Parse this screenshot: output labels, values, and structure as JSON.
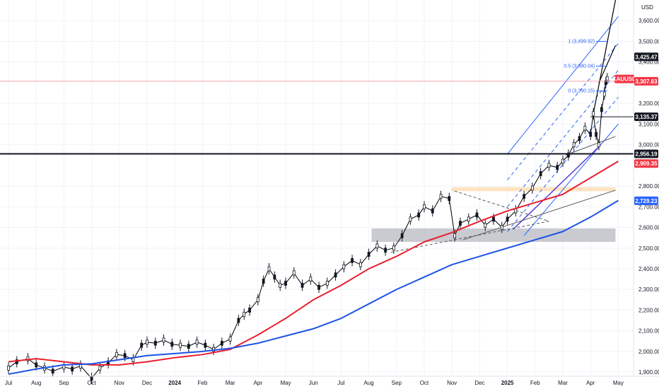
{
  "chart_data": {
    "type": "line",
    "symbol": "XAUUSD",
    "currency": "USD",
    "ylim": [
      1880,
      3700
    ],
    "y_ticks": [
      "1,900.00",
      "2,000.00",
      "2,100.00",
      "2,200.00",
      "2,300.00",
      "2,400.00",
      "2,500.00",
      "2,600.00",
      "2,700.00",
      "2,800.00",
      "3,000.00",
      "3,100.00",
      "3,200.00",
      "3,400.00",
      "3,500.00",
      "3,600.00"
    ],
    "y_tick_values": [
      1900,
      2000,
      2100,
      2200,
      2300,
      2400,
      2500,
      2600,
      2700,
      2800,
      3000,
      3100,
      3200,
      3400,
      3500,
      3600
    ],
    "x_ticks": [
      "Jul",
      "Aug",
      "Sep",
      "Oct",
      "Nov",
      "Dec",
      "2024",
      "Feb",
      "Mar",
      "Apr",
      "May",
      "Jun",
      "Jul",
      "Aug",
      "Sep",
      "Oct",
      "Nov",
      "Dec",
      "2025",
      "Feb",
      "Mar",
      "Apr",
      "May"
    ],
    "x_tick_months": [
      0,
      1,
      2,
      3,
      4,
      5,
      6,
      7,
      8,
      9,
      10,
      11,
      12,
      13,
      14,
      15,
      16,
      17,
      18,
      19,
      20,
      21,
      22
    ],
    "x_start": "2023-07",
    "series": [
      {
        "name": "",
        "role": "price",
        "color": "#000000",
        "x": [
          0,
          0.3,
          0.7,
          1,
          1.3,
          1.6,
          2,
          2.3,
          2.6,
          3,
          3.3,
          3.6,
          3.9,
          4.2,
          4.5,
          4.8,
          5,
          5.3,
          5.6,
          5.9,
          6.2,
          6.5,
          6.8,
          7.1,
          7.4,
          7.7,
          8,
          8.3,
          8.5,
          8.7,
          9,
          9.2,
          9.4,
          9.6,
          9.8,
          10,
          10.3,
          10.6,
          10.9,
          11.2,
          11.5,
          11.8,
          12.1,
          12.4,
          12.7,
          13,
          13.3,
          13.6,
          13.9,
          14.2,
          14.5,
          14.8,
          15,
          15.3,
          15.6,
          15.9,
          16.1,
          16.3,
          16.6,
          16.9,
          17.2,
          17.5,
          17.8,
          18,
          18.3,
          18.6,
          18.9,
          19.2,
          19.5,
          19.8,
          20,
          20.2,
          20.4,
          20.6,
          20.8,
          21,
          21.1,
          21.2,
          21.3,
          21.4,
          21.5,
          21.55,
          21.6
        ],
        "values": [
          1920,
          1950,
          1965,
          1935,
          1920,
          1905,
          1925,
          1915,
          1930,
          1870,
          1920,
          1945,
          1985,
          1980,
          1960,
          2030,
          2045,
          2040,
          2055,
          2035,
          2030,
          2025,
          2045,
          2030,
          2010,
          2040,
          2060,
          2150,
          2180,
          2200,
          2250,
          2340,
          2400,
          2360,
          2320,
          2330,
          2380,
          2320,
          2350,
          2310,
          2330,
          2370,
          2410,
          2440,
          2420,
          2470,
          2510,
          2490,
          2500,
          2560,
          2640,
          2660,
          2700,
          2680,
          2750,
          2740,
          2560,
          2620,
          2640,
          2660,
          2610,
          2640,
          2600,
          2640,
          2680,
          2750,
          2790,
          2860,
          2900,
          2890,
          2920,
          2950,
          3000,
          3030,
          3080,
          3050,
          3150,
          3050,
          3000,
          3170,
          3245,
          3300,
          3320
        ]
      },
      {
        "name": "",
        "role": "moving-average",
        "color": "#e91e2e",
        "x": [
          0,
          1,
          2,
          3,
          4,
          5,
          6,
          7,
          8,
          9,
          10,
          11,
          12,
          13,
          14,
          15,
          16,
          17,
          18,
          19,
          20,
          21,
          22
        ],
        "values": [
          1950,
          1965,
          1950,
          1935,
          1935,
          1950,
          1970,
          1985,
          2010,
          2080,
          2160,
          2250,
          2320,
          2400,
          2460,
          2530,
          2575,
          2630,
          2680,
          2720,
          2760,
          2840,
          2920
        ]
      },
      {
        "name": "",
        "role": "moving-average",
        "color": "#1e53e5",
        "x": [
          0,
          1,
          2,
          3,
          4,
          5,
          6,
          7,
          8,
          9,
          10,
          11,
          12,
          13,
          14,
          15,
          16,
          17,
          18,
          19,
          20,
          21,
          22
        ],
        "values": [
          1890,
          1915,
          1935,
          1940,
          1960,
          1980,
          1990,
          2000,
          2015,
          2040,
          2075,
          2110,
          2160,
          2230,
          2300,
          2360,
          2420,
          2460,
          2500,
          2540,
          2580,
          2650,
          2730
        ]
      }
    ],
    "price_tags": [
      {
        "label": "3,425.47",
        "value": 3425,
        "bg": "#131722",
        "color": "#ffffff"
      },
      {
        "label": "XAUUSD",
        "value": 3318,
        "bg": "#f23645",
        "color": "#ffffff"
      },
      {
        "label": "3,307.63",
        "value": 3307,
        "bg": "#f23645",
        "color": "#ffffff"
      },
      {
        "label": "3,135.37",
        "value": 3135,
        "bg": "#131722",
        "color": "#ffffff"
      },
      {
        "label": "2,956.19",
        "value": 2956,
        "bg": "#131722",
        "color": "#ffffff"
      },
      {
        "label": "2,909.35",
        "value": 2909,
        "bg": "#f23645",
        "color": "#ffffff"
      },
      {
        "label": "2,729.23",
        "value": 2729,
        "bg": "#2962ff",
        "color": "#ffffff"
      }
    ],
    "fib_labels": [
      {
        "label": "1 (3,499.92)",
        "value": 3500
      },
      {
        "label": "0.5 (3,380.04)",
        "value": 3380
      },
      {
        "label": "0 (3,260.15)",
        "value": 3260
      }
    ],
    "horizontal_levels": [
      {
        "value": 2956,
        "color": "#131722"
      },
      {
        "value": 3307,
        "color": "#f7a5ac"
      },
      {
        "value": 3135,
        "color": "#131722"
      }
    ],
    "zones": [
      {
        "y_range": [
          2530,
          2595
        ],
        "x_range": [
          13.1,
          21.9
        ],
        "color": "#b2b5be"
      },
      {
        "y_range": [
          2775,
          2795
        ],
        "x_range": [
          16.0,
          21.9
        ],
        "color": "#ffd8a8"
      }
    ]
  }
}
